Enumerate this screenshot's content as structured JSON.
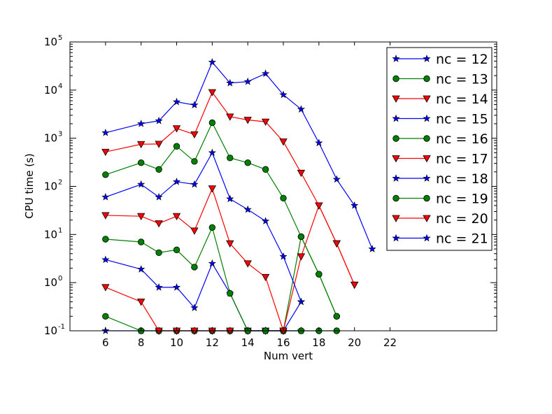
{
  "chart_data": {
    "type": "line",
    "xlabel": "Num vert",
    "ylabel": "CPU time (s)",
    "xlim": [
      4,
      28
    ],
    "ylim": [
      0.1,
      100000
    ],
    "yscale": "log",
    "grid": false,
    "legend_position": "top-right",
    "x_ticks": [
      6,
      8,
      10,
      12,
      14,
      16,
      18,
      20,
      22
    ],
    "y_ticks": [
      {
        "value": 0.1,
        "base": "10",
        "exp": "-1"
      },
      {
        "value": 1,
        "base": "10",
        "exp": "0"
      },
      {
        "value": 10,
        "base": "10",
        "exp": "1"
      },
      {
        "value": 100,
        "base": "10",
        "exp": "2"
      },
      {
        "value": 1000,
        "base": "10",
        "exp": "3"
      },
      {
        "value": 10000,
        "base": "10",
        "exp": "4"
      },
      {
        "value": 100000,
        "base": "10",
        "exp": "5"
      }
    ],
    "series": [
      {
        "name": "nc = 12",
        "color": "#0000ff",
        "marker": "star",
        "x": [
          6,
          8,
          9,
          10,
          11,
          12,
          13,
          14,
          15,
          16,
          17
        ],
        "y": [
          0.1,
          0.1,
          0.1,
          0.1,
          0.1,
          0.1,
          0.1,
          0.1,
          0.1,
          0.1,
          0.1
        ]
      },
      {
        "name": "nc = 13",
        "color": "#008000",
        "marker": "circle",
        "x": [
          6,
          8,
          9,
          10,
          11,
          12,
          13,
          14,
          15,
          16,
          17,
          18,
          19
        ],
        "y": [
          0.2,
          0.1,
          0.1,
          0.1,
          0.1,
          0.1,
          0.1,
          0.1,
          0.1,
          0.1,
          0.1,
          0.1,
          0.1
        ]
      },
      {
        "name": "nc = 14",
        "color": "#ff0000",
        "marker": "triangle-down",
        "x": [
          6,
          8,
          9,
          10,
          11,
          12,
          13,
          14,
          15,
          16
        ],
        "y": [
          0.8,
          0.4,
          0.1,
          0.1,
          0.1,
          0.1,
          0.1,
          0.1,
          0.1,
          0.1
        ]
      },
      {
        "name": "nc = 15",
        "color": "#0000ff",
        "marker": "star",
        "x": [
          6,
          8,
          9,
          10,
          11,
          12,
          13,
          14,
          15,
          16,
          17
        ],
        "y": [
          3,
          1.9,
          0.8,
          0.8,
          0.3,
          2.5,
          0.6,
          0.1,
          0.1,
          0.1,
          0.4
        ]
      },
      {
        "name": "nc = 16",
        "color": "#008000",
        "marker": "circle",
        "x": [
          6,
          8,
          9,
          10,
          11,
          12,
          13,
          14,
          15,
          16,
          17,
          18,
          19
        ],
        "y": [
          8,
          7,
          4.2,
          4.8,
          2.1,
          14,
          0.6,
          0.1,
          0.1,
          0.1,
          9,
          1.5,
          0.2
        ]
      },
      {
        "name": "nc = 17",
        "color": "#ff0000",
        "marker": "triangle-down",
        "x": [
          6,
          8,
          9,
          10,
          11,
          12,
          13,
          14,
          15,
          16,
          17,
          18,
          19,
          20
        ],
        "y": [
          25,
          24,
          17,
          24,
          12,
          90,
          6.5,
          2.5,
          1.3,
          0.1,
          3.5,
          40,
          6.5,
          0.9
        ]
      },
      {
        "name": "nc = 18",
        "color": "#0000ff",
        "marker": "star",
        "x": [
          6,
          8,
          9,
          10,
          11,
          12,
          13,
          14,
          15,
          16,
          17
        ],
        "y": [
          60,
          110,
          60,
          125,
          110,
          500,
          55,
          33,
          19,
          3.5,
          0.4
        ]
      },
      {
        "name": "nc = 19",
        "color": "#008000",
        "marker": "circle",
        "x": [
          6,
          8,
          9,
          10,
          11,
          12,
          13,
          14,
          15,
          16,
          17,
          18,
          19
        ],
        "y": [
          175,
          310,
          225,
          680,
          330,
          2100,
          390,
          310,
          225,
          57,
          9,
          1.5,
          0.2
        ]
      },
      {
        "name": "nc = 20",
        "color": "#ff0000",
        "marker": "triangle-down",
        "x": [
          6,
          8,
          9,
          10,
          11,
          12,
          13,
          14,
          15,
          16,
          17,
          18,
          19,
          20
        ],
        "y": [
          520,
          750,
          760,
          1600,
          1200,
          9000,
          2800,
          2400,
          2200,
          850,
          190,
          40,
          6.5,
          0.9
        ]
      },
      {
        "name": "nc = 21",
        "color": "#0000ff",
        "marker": "star",
        "x": [
          6,
          8,
          9,
          10,
          11,
          12,
          13,
          14,
          15,
          16,
          17,
          18,
          19,
          20,
          21
        ],
        "y": [
          1300,
          2000,
          2300,
          5700,
          4900,
          38000,
          14000,
          15000,
          22000,
          8000,
          4000,
          800,
          140,
          40,
          5
        ]
      }
    ]
  }
}
